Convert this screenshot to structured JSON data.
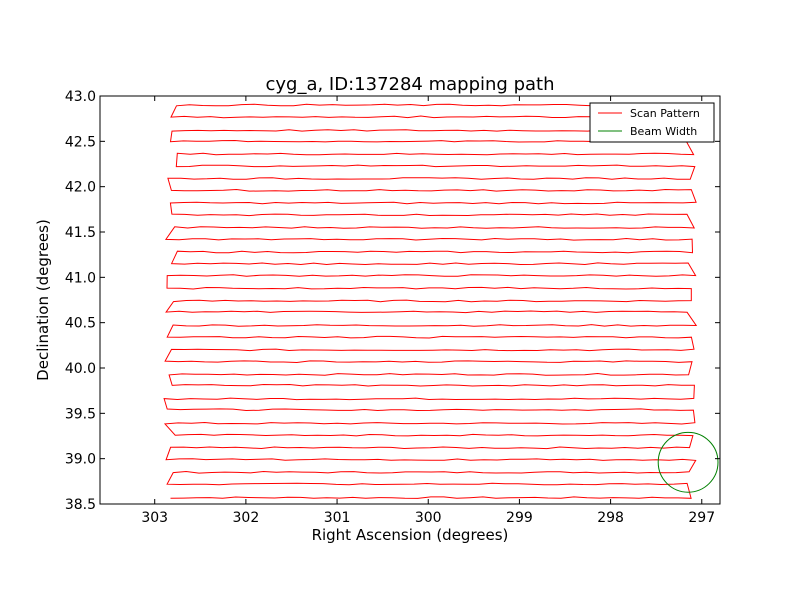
{
  "chart_data": {
    "type": "line",
    "title": "cyg_a, ID:137284 mapping path",
    "xlabel": "Right Ascension (degrees)",
    "ylabel": "Declination (degrees)",
    "xlim": [
      303.6,
      296.8
    ],
    "ylim": [
      38.5,
      43.0
    ],
    "x_inverted": true,
    "xticks": [
      303,
      302,
      301,
      300,
      299,
      298,
      297
    ],
    "yticks": [
      38.5,
      39.0,
      39.5,
      40.0,
      40.5,
      41.0,
      41.5,
      42.0,
      42.5,
      43.0
    ],
    "xtick_labels": [
      "303",
      "302",
      "301",
      "300",
      "299",
      "298",
      "297"
    ],
    "ytick_labels": [
      "38.5",
      "39.0",
      "39.5",
      "40.0",
      "40.5",
      "41.0",
      "41.5",
      "42.0",
      "42.5",
      "43.0"
    ],
    "grid": false,
    "legend_position": "top-right",
    "legend": [
      "Scan Pattern",
      "Beam Width"
    ],
    "series": [
      {
        "name": "Scan Pattern",
        "color": "#ff0000",
        "scan_rows_dec": [
          38.57,
          38.72,
          38.85,
          38.99,
          39.12,
          39.26,
          39.39,
          39.54,
          39.66,
          39.81,
          39.93,
          40.07,
          40.2,
          40.34,
          40.47,
          40.62,
          40.74,
          40.88,
          41.02,
          41.15,
          41.28,
          41.42,
          41.55,
          41.69,
          41.82,
          41.96,
          42.09,
          42.23,
          42.36,
          42.5,
          42.62,
          42.77,
          42.9
        ],
        "ra_range": [
          302.9,
          297.05
        ]
      },
      {
        "name": "Beam Width",
        "color": "#008000",
        "center": [
          297.15,
          38.96
        ],
        "radius_deg": 0.33
      }
    ]
  }
}
